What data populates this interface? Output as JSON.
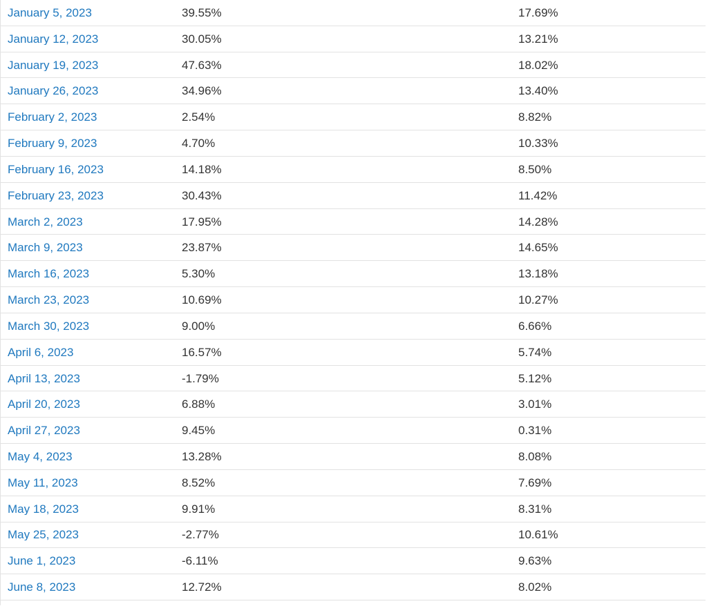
{
  "table": {
    "description": "weekly-returns-table",
    "link_color": "#2079bf",
    "value_color": "#333333",
    "border_color": "#e2e2e2",
    "columns": [
      "date",
      "value1",
      "value2"
    ],
    "rows": [
      {
        "date": "January 5, 2023",
        "value1": "39.55%",
        "value2": "17.69%"
      },
      {
        "date": "January 12, 2023",
        "value1": "30.05%",
        "value2": "13.21%"
      },
      {
        "date": "January 19, 2023",
        "value1": "47.63%",
        "value2": "18.02%"
      },
      {
        "date": "January 26, 2023",
        "value1": "34.96%",
        "value2": "13.40%"
      },
      {
        "date": "February 2, 2023",
        "value1": "2.54%",
        "value2": "8.82%"
      },
      {
        "date": "February 9, 2023",
        "value1": "4.70%",
        "value2": "10.33%"
      },
      {
        "date": "February 16, 2023",
        "value1": "14.18%",
        "value2": "8.50%"
      },
      {
        "date": "February 23, 2023",
        "value1": "30.43%",
        "value2": "11.42%"
      },
      {
        "date": "March 2, 2023",
        "value1": "17.95%",
        "value2": "14.28%"
      },
      {
        "date": "March 9, 2023",
        "value1": "23.87%",
        "value2": "14.65%"
      },
      {
        "date": "March 16, 2023",
        "value1": "5.30%",
        "value2": "13.18%"
      },
      {
        "date": "March 23, 2023",
        "value1": "10.69%",
        "value2": "10.27%"
      },
      {
        "date": "March 30, 2023",
        "value1": "9.00%",
        "value2": "6.66%"
      },
      {
        "date": "April 6, 2023",
        "value1": "16.57%",
        "value2": "5.74%"
      },
      {
        "date": "April 13, 2023",
        "value1": "-1.79%",
        "value2": "5.12%"
      },
      {
        "date": "April 20, 2023",
        "value1": "6.88%",
        "value2": "3.01%"
      },
      {
        "date": "April 27, 2023",
        "value1": "9.45%",
        "value2": "0.31%"
      },
      {
        "date": "May 4, 2023",
        "value1": "13.28%",
        "value2": "8.08%"
      },
      {
        "date": "May 11, 2023",
        "value1": "8.52%",
        "value2": "7.69%"
      },
      {
        "date": "May 18, 2023",
        "value1": "9.91%",
        "value2": "8.31%"
      },
      {
        "date": "May 25, 2023",
        "value1": "-2.77%",
        "value2": "10.61%"
      },
      {
        "date": "June 1, 2023",
        "value1": "-6.11%",
        "value2": "9.63%"
      },
      {
        "date": "June 8, 2023",
        "value1": "12.72%",
        "value2": "8.02%"
      }
    ]
  }
}
